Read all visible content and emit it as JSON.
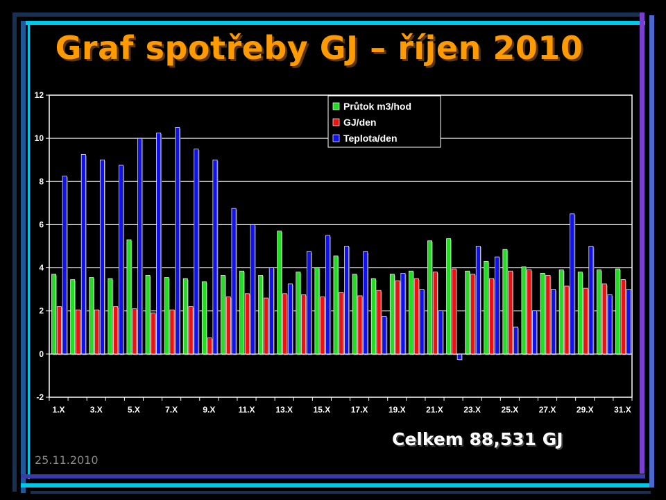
{
  "slide": {
    "title": "Graf spotřeby GJ – říjen 2010",
    "total": "Celkem 88,531 GJ",
    "date": "25.11.2010",
    "title_color": "#FF9A00",
    "frame_colors": [
      "#1e5a9a",
      "#00c8e8",
      "#7b3fd0",
      "#3a3aa8"
    ]
  },
  "chart_data": {
    "type": "bar",
    "title": "",
    "xlabel": "",
    "ylabel": "",
    "ylim": [
      -2,
      12
    ],
    "yticks": [
      "-2",
      "0",
      "2",
      "4",
      "6",
      "8",
      "10",
      "12"
    ],
    "grid": true,
    "legend_position": "top-center",
    "categories": [
      "1.X",
      "2.X",
      "3.X",
      "4.X",
      "5.X",
      "6.X",
      "7.X",
      "8.X",
      "9.X",
      "10.X",
      "11.X",
      "12.X",
      "13.X",
      "14.X",
      "15.X",
      "16.X",
      "17.X",
      "18.X",
      "19.X",
      "20.X",
      "21.X",
      "22.X",
      "23.X",
      "24.X",
      "25.X",
      "26.X",
      "27.X",
      "28.X",
      "29.X",
      "30.X",
      "31.X"
    ],
    "tick_labels": [
      "1.X",
      "3.X",
      "5.X",
      "7.X",
      "9.X",
      "11.X",
      "13.X",
      "15.X",
      "17.X",
      "19.X",
      "21.X",
      "23.X",
      "25.X",
      "27.X",
      "29.X",
      "31.X"
    ],
    "series": [
      {
        "name": "Průtok m3/hod",
        "color": "#22DD22",
        "values": [
          3.7,
          3.45,
          3.55,
          3.5,
          5.3,
          3.65,
          3.55,
          3.5,
          3.35,
          3.65,
          3.85,
          3.65,
          5.7,
          3.8,
          4.0,
          4.55,
          3.7,
          3.5,
          3.7,
          3.85,
          5.25,
          5.35,
          3.85,
          4.3,
          4.85,
          4.05,
          3.75,
          3.9,
          3.8,
          3.9,
          3.95
        ]
      },
      {
        "name": "GJ/den",
        "color": "#EE1111",
        "values": [
          2.2,
          2.05,
          2.05,
          2.2,
          2.1,
          1.9,
          2.05,
          2.2,
          0.75,
          2.65,
          2.8,
          2.6,
          2.8,
          2.75,
          2.65,
          2.85,
          2.7,
          2.95,
          3.4,
          3.5,
          3.8,
          3.95,
          3.7,
          3.5,
          3.85,
          3.9,
          3.65,
          3.15,
          3.05,
          3.25,
          3.45
        ]
      },
      {
        "name": "Teplota/den",
        "color": "#1111EE",
        "values": [
          8.25,
          9.25,
          9.0,
          8.75,
          10.0,
          10.25,
          10.5,
          9.5,
          9.0,
          6.75,
          6.0,
          4.0,
          3.25,
          4.75,
          5.5,
          5.0,
          4.75,
          1.75,
          3.75,
          3.0,
          2.0,
          -0.25,
          5.0,
          4.5,
          1.25,
          2.0,
          3.0,
          6.5,
          5.0,
          2.75,
          3.0
        ]
      }
    ]
  }
}
